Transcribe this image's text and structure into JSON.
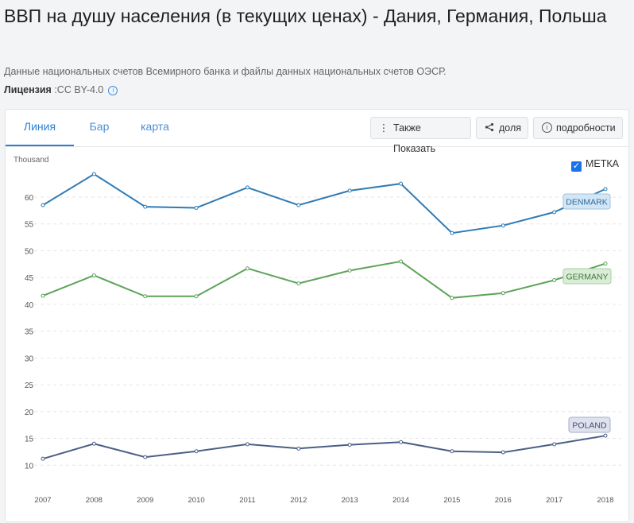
{
  "page": {
    "title": "ВВП на душу населения (в текущих ценах) - Дания, Германия, Польша",
    "source": "Данные национальных счетов Всемирного банка и файлы данных национальных счетов ОЭСР.",
    "license_label": "Лицензия",
    "license_value": " :CC BY-4.0"
  },
  "tabs": [
    {
      "label": "Линия",
      "active": true
    },
    {
      "label": "Бар",
      "active": false
    },
    {
      "label": "карта",
      "active": false
    }
  ],
  "toolbar": {
    "also_show_label": "Также Показать",
    "share_label": "доля",
    "details_label": "подробности"
  },
  "legend": {
    "checkbox_label": "МЕТКА",
    "checked": true
  },
  "chart_data": {
    "type": "line",
    "ylabel": "Thousand",
    "x": [
      "2007",
      "2008",
      "2009",
      "2010",
      "2011",
      "2012",
      "2013",
      "2014",
      "2015",
      "2016",
      "2017",
      "2018"
    ],
    "ylim": [
      8,
      65
    ],
    "yticks": [
      10,
      15,
      20,
      25,
      30,
      35,
      40,
      45,
      50,
      55,
      60
    ],
    "grid": true,
    "series": [
      {
        "name": "DENMARK",
        "color": "#2e7bb5",
        "values": [
          58.5,
          64.3,
          58.2,
          58.0,
          61.8,
          58.5,
          61.2,
          62.5,
          53.3,
          54.7,
          57.2,
          61.5
        ]
      },
      {
        "name": "GERMANY",
        "color": "#5ea35a",
        "values": [
          41.6,
          45.4,
          41.5,
          41.5,
          46.7,
          43.9,
          46.3,
          48.0,
          41.2,
          42.1,
          44.5,
          47.6
        ]
      },
      {
        "name": "POLAND",
        "color": "#4b5f86",
        "values": [
          11.2,
          14.0,
          11.5,
          12.6,
          13.9,
          13.1,
          13.8,
          14.3,
          12.6,
          12.4,
          13.9,
          15.5
        ]
      }
    ]
  }
}
